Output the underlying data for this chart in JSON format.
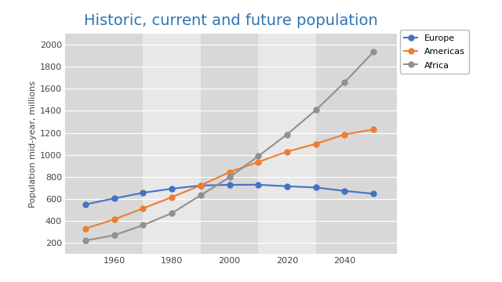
{
  "title": "Historic, current and future population",
  "title_color": "#2E75B6",
  "ylabel": "Population mid-year, millions",
  "figure_bg_color": "#FFFFFF",
  "plot_bg_color": "#E8E8E8",
  "band_light": "#E8E8E8",
  "band_dark": "#D8D8D8",
  "grid_color": "#FFFFFF",
  "years": [
    1950,
    1960,
    1970,
    1980,
    1990,
    2000,
    2010,
    2020,
    2030,
    2040,
    2050
  ],
  "europe": [
    549,
    604,
    655,
    692,
    721,
    727,
    728,
    714,
    703,
    672,
    646
  ],
  "americas": [
    330,
    413,
    513,
    615,
    722,
    843,
    935,
    1029,
    1100,
    1185,
    1231
  ],
  "africa": [
    221,
    269,
    360,
    470,
    632,
    796,
    988,
    1186,
    1407,
    1660,
    1936
  ],
  "europe_color": "#4472C4",
  "americas_color": "#ED7D31",
  "africa_color": "#909090",
  "linewidth": 1.5,
  "markersize": 5,
  "ylim": [
    100,
    2100
  ],
  "yticks": [
    200,
    400,
    600,
    800,
    1000,
    1200,
    1400,
    1600,
    1800,
    2000
  ],
  "xlim": [
    1943,
    2058
  ],
  "xticks": [
    1960,
    1980,
    2000,
    2020,
    2040
  ],
  "band_edges": [
    1943,
    1970,
    1990,
    2010,
    2030,
    2058
  ]
}
